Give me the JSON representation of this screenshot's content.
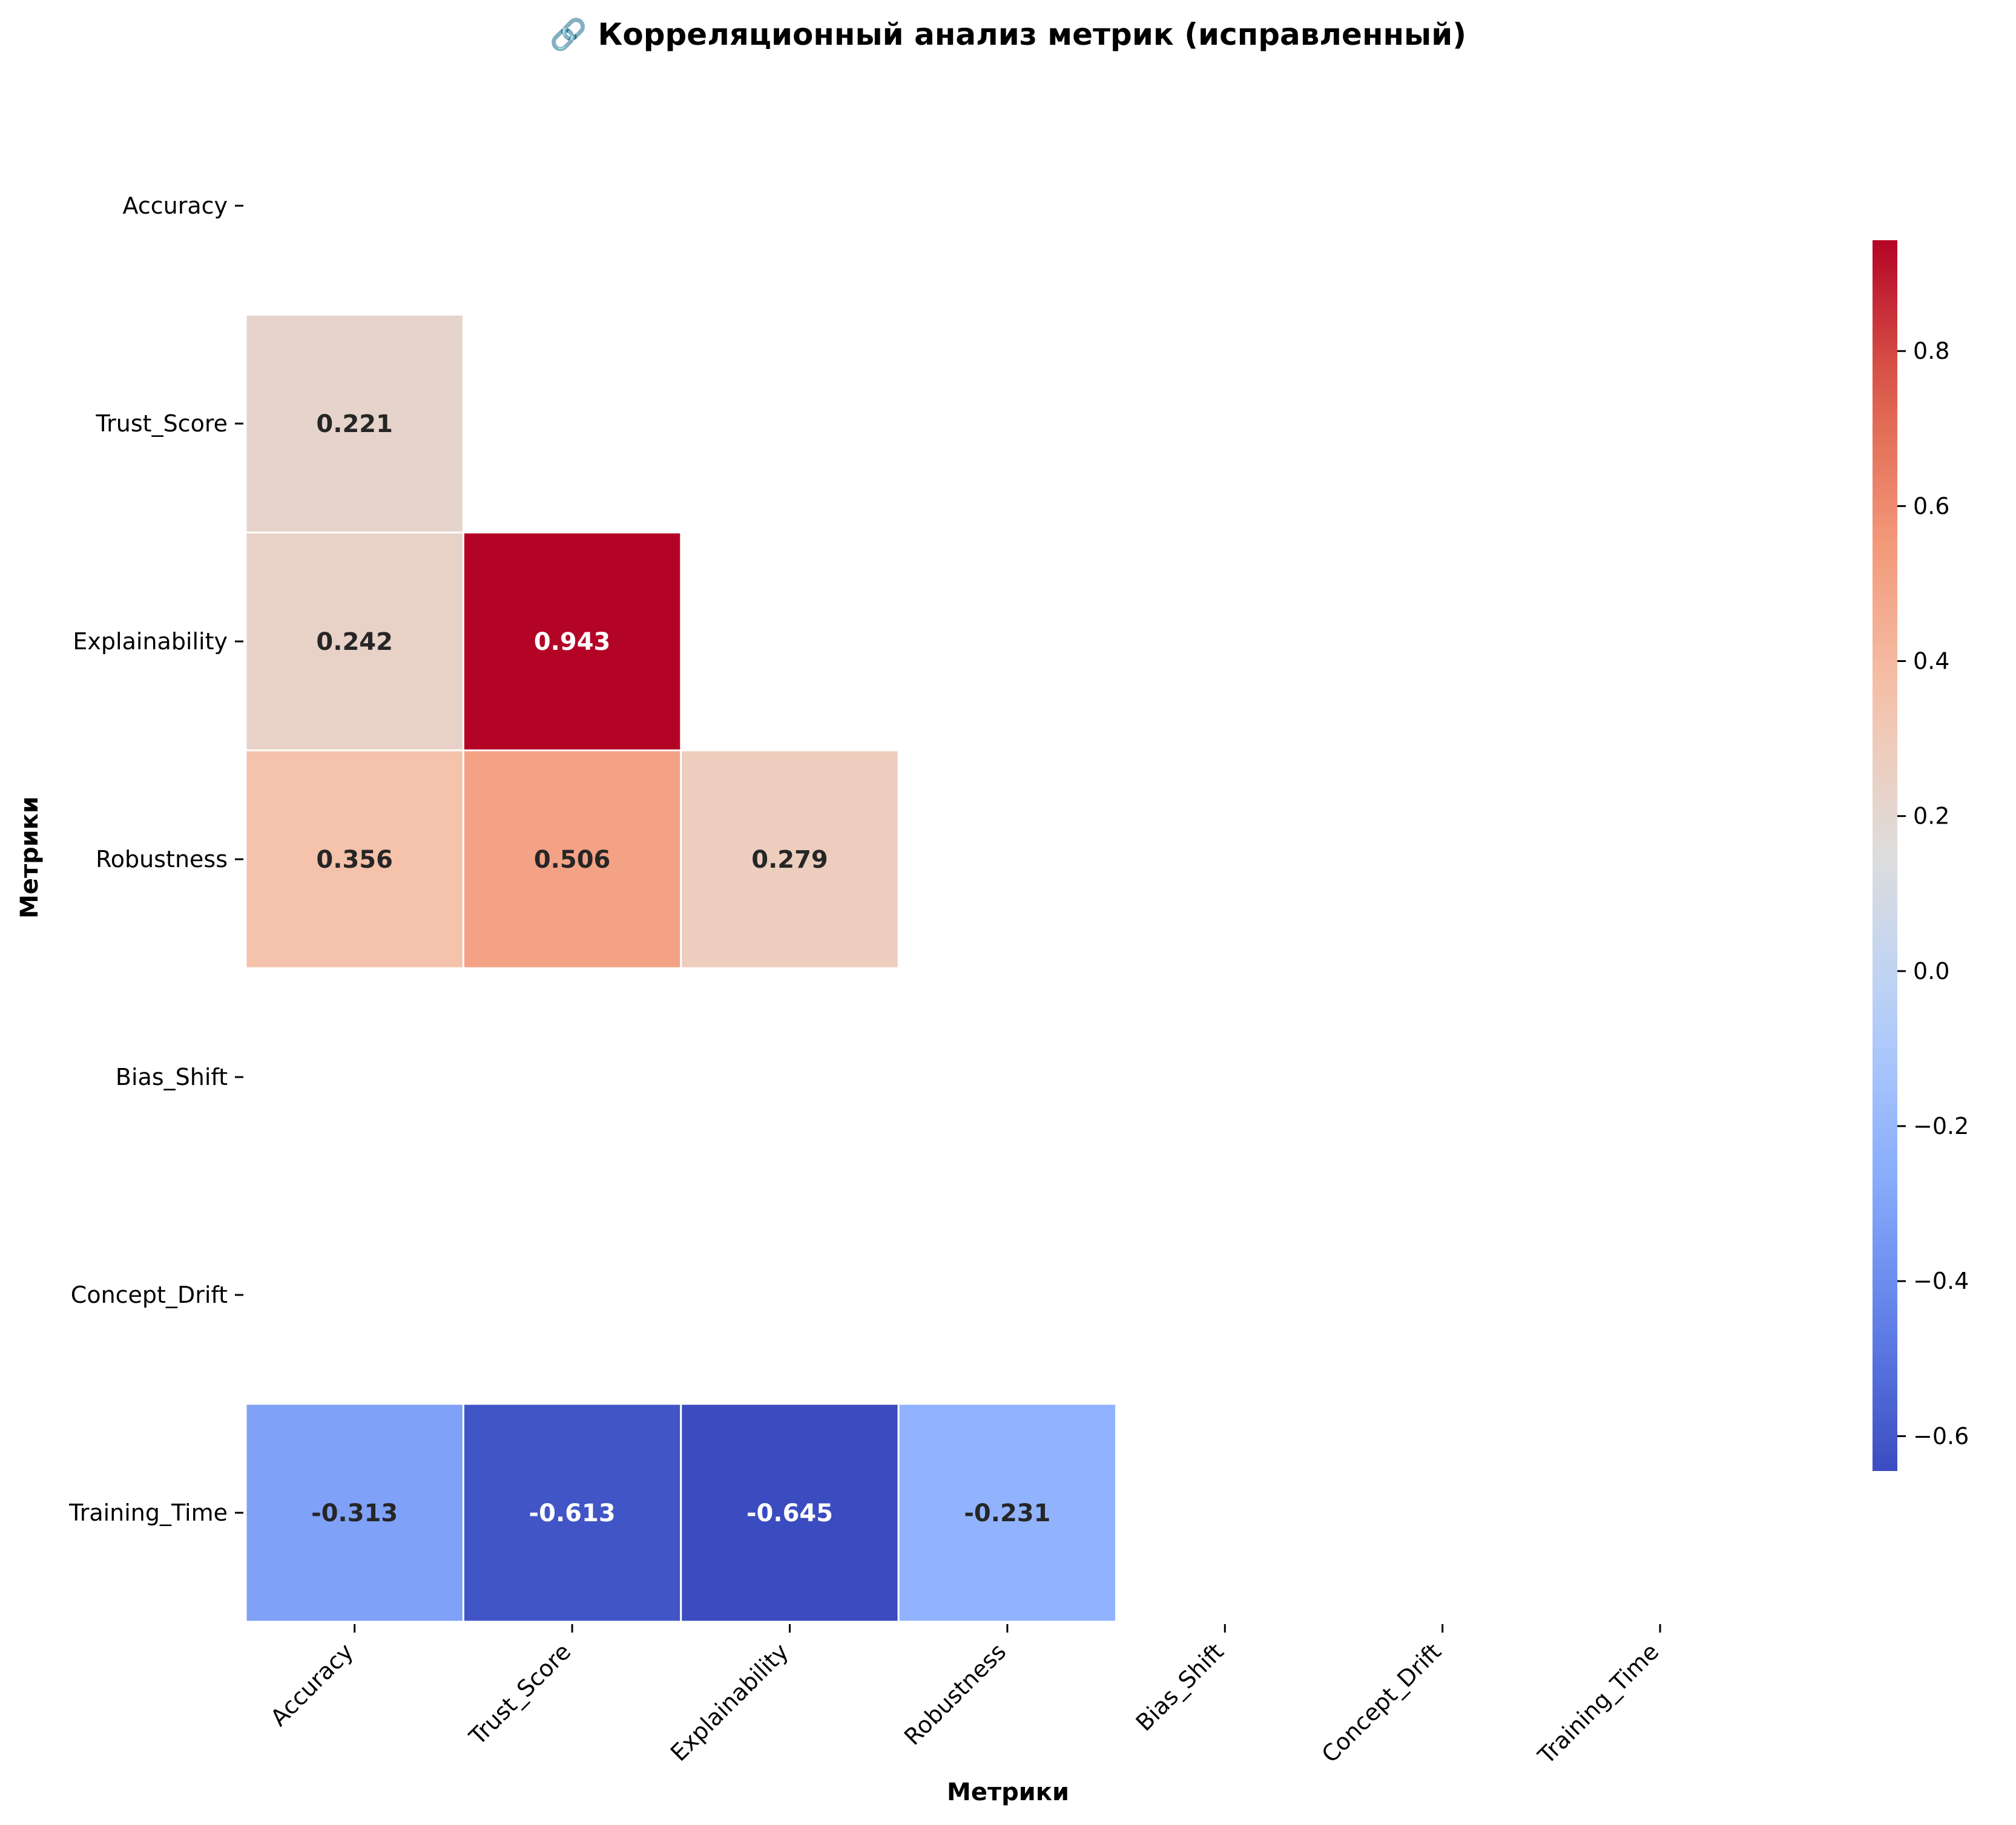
{
  "chart_data": {
    "type": "heatmap",
    "title": "🔗 Корреляционный анализ метрик (исправленный)",
    "xlabel": "Метрики",
    "ylabel": "Метрики",
    "rows": [
      "Accuracy",
      "Trust_Score",
      "Explainability",
      "Robustness",
      "Bias_Shift",
      "Concept_Drift",
      "Training_Time"
    ],
    "columns": [
      "Accuracy",
      "Trust_Score",
      "Explainability",
      "Robustness",
      "Bias_Shift",
      "Concept_Drift",
      "Training_Time"
    ],
    "cells": [
      {
        "row": "Trust_Score",
        "col": "Accuracy",
        "value": 0.221,
        "label": "0.221"
      },
      {
        "row": "Explainability",
        "col": "Accuracy",
        "value": 0.242,
        "label": "0.242"
      },
      {
        "row": "Explainability",
        "col": "Trust_Score",
        "value": 0.943,
        "label": "0.943"
      },
      {
        "row": "Robustness",
        "col": "Accuracy",
        "value": 0.356,
        "label": "0.356"
      },
      {
        "row": "Robustness",
        "col": "Trust_Score",
        "value": 0.506,
        "label": "0.506"
      },
      {
        "row": "Robustness",
        "col": "Explainability",
        "value": 0.279,
        "label": "0.279"
      },
      {
        "row": "Training_Time",
        "col": "Accuracy",
        "value": -0.313,
        "label": "-0.313"
      },
      {
        "row": "Training_Time",
        "col": "Trust_Score",
        "value": -0.613,
        "label": "-0.613"
      },
      {
        "row": "Training_Time",
        "col": "Explainability",
        "value": -0.645,
        "label": "-0.645"
      },
      {
        "row": "Training_Time",
        "col": "Robustness",
        "value": -0.231,
        "label": "-0.231"
      }
    ],
    "colorbar": {
      "min": -0.645,
      "max": 0.943,
      "ticks": [
        -0.6,
        -0.4,
        -0.2,
        0.0,
        0.2,
        0.4,
        0.6,
        0.8
      ],
      "tick_labels": [
        "−0.6",
        "−0.4",
        "−0.2",
        "0.0",
        "0.2",
        "0.4",
        "0.6",
        "0.8"
      ],
      "colormap": "coolwarm",
      "placement": "right"
    },
    "mask": "upper-triangle-and-diagonal",
    "grid": false
  }
}
